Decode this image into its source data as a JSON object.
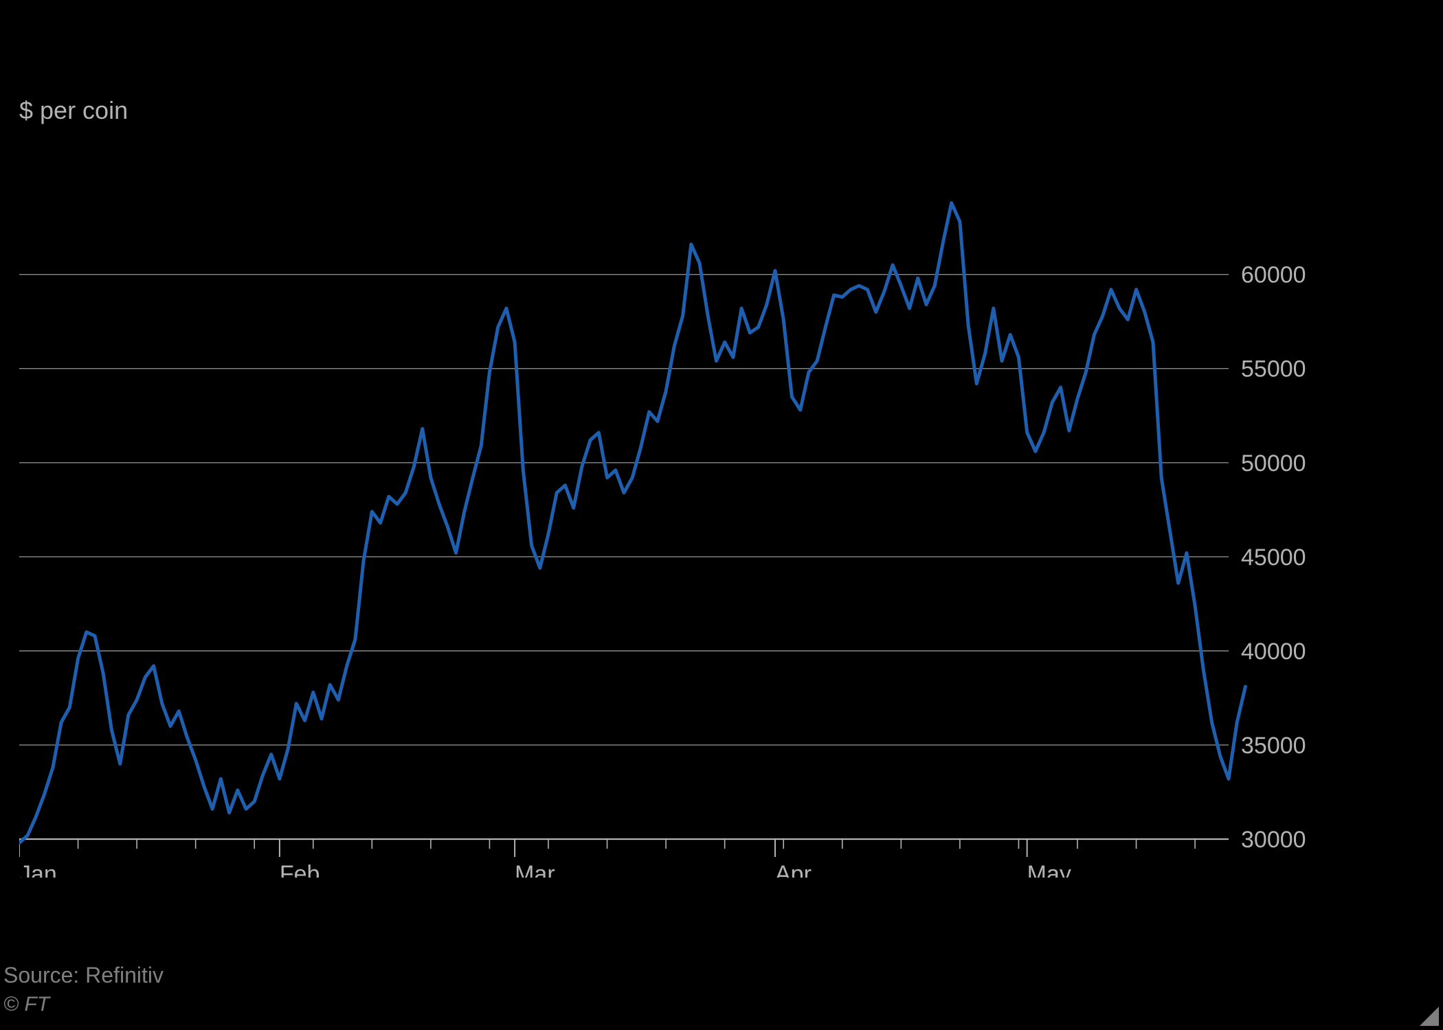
{
  "chart": {
    "type": "line",
    "ylabel": "$ per coin",
    "background_color": "#000000",
    "grid_color": "#8a8a8a",
    "axis_line_color": "#b3b3b3",
    "tick_color": "#b3b3b3",
    "x_tick_label_color": "#b3b3b3",
    "y_tick_label_color": "#b3b3b3",
    "ylabel_color": "#b3b3b3",
    "label_fontsize": 36,
    "tick_fontsize": 34,
    "line_color": "#1f5fb0",
    "line_width": 5,
    "ylim": [
      30000,
      64000
    ],
    "yticks": [
      30000,
      35000,
      40000,
      45000,
      50000,
      55000,
      60000
    ],
    "ytick_labels": [
      "30000",
      "35000",
      "40000",
      "45000",
      "50000",
      "55000",
      "60000"
    ],
    "x_major_ticks": [
      {
        "x": 0,
        "label": "Jan"
      },
      {
        "x": 31,
        "label": "Feb"
      },
      {
        "x": 59,
        "label": "Mar"
      },
      {
        "x": 90,
        "label": "Apr"
      },
      {
        "x": 120,
        "label": "May"
      }
    ],
    "x_minor_step": 7,
    "x_range": [
      0,
      144
    ],
    "series": {
      "values": [
        29800,
        30200,
        31200,
        32400,
        33800,
        36200,
        37000,
        39600,
        41000,
        40800,
        38800,
        35800,
        34000,
        36600,
        37400,
        38600,
        39200,
        37200,
        36000,
        36800,
        35400,
        34200,
        32800,
        31600,
        33200,
        31400,
        32600,
        31600,
        32000,
        33400,
        34500,
        33200,
        34800,
        37200,
        36300,
        37800,
        36400,
        38200,
        37400,
        39200,
        40600,
        44800,
        47400,
        46800,
        48200,
        47800,
        48400,
        49800,
        51800,
        49200,
        47800,
        46600,
        45200,
        47400,
        49200,
        50900,
        54800,
        57200,
        58200,
        56400,
        49600,
        45600,
        44400,
        46200,
        48400,
        48800,
        47600,
        49800,
        51200,
        51600,
        49200,
        49600,
        48400,
        49200,
        50800,
        52700,
        52200,
        53800,
        56200,
        57800,
        61600,
        60600,
        57800,
        55400,
        56400,
        55600,
        58200,
        56900,
        57200,
        58400,
        60200,
        57600,
        53500,
        52800,
        54800,
        55400,
        57200,
        58900,
        58800,
        59200,
        59400,
        59200,
        58000,
        59100,
        60500,
        59400,
        58200,
        59800,
        58400,
        59400,
        61700,
        63800,
        62800,
        57300,
        54200,
        55800,
        58200,
        55400,
        56800,
        55600,
        51600,
        50600,
        51600,
        53200,
        54000,
        51700,
        53400,
        54800,
        56800,
        57800,
        59200,
        58200,
        57600,
        59200,
        58000,
        56400,
        49200,
        46400,
        43600,
        45200,
        42400,
        39000,
        36200,
        34400,
        33200,
        36200,
        38100
      ]
    }
  },
  "source": "Source: Refinitiv",
  "copyright": "© FT"
}
